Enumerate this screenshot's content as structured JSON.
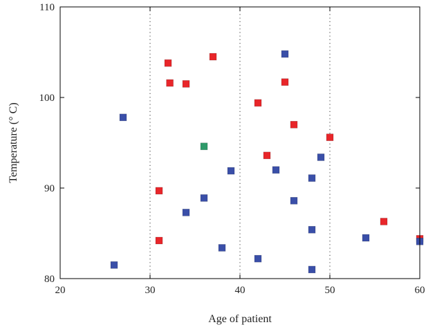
{
  "chart_data": {
    "type": "scatter",
    "title": "",
    "xlabel": "Age of patient",
    "ylabel": "Temperature (° C)",
    "xlim": [
      20,
      60
    ],
    "ylim": [
      80,
      110
    ],
    "xticks": [
      "20",
      "30",
      "40",
      "50",
      "60"
    ],
    "yticks": [
      "80",
      "90",
      "100",
      "110"
    ],
    "vertical_dotted_lines": [
      30,
      40,
      50
    ],
    "grid": false,
    "series": [
      {
        "color": "#e8262a",
        "points": [
          {
            "x": 32,
            "y": 103.8
          },
          {
            "x": 32.2,
            "y": 101.6
          },
          {
            "x": 34,
            "y": 101.5
          },
          {
            "x": 37,
            "y": 104.5
          },
          {
            "x": 31,
            "y": 89.7
          },
          {
            "x": 31,
            "y": 84.2
          },
          {
            "x": 42,
            "y": 99.4
          },
          {
            "x": 45,
            "y": 101.7
          },
          {
            "x": 46,
            "y": 97.0
          },
          {
            "x": 50,
            "y": 95.6
          },
          {
            "x": 43,
            "y": 93.6
          },
          {
            "x": 56,
            "y": 86.3
          },
          {
            "x": 60,
            "y": 84.4
          }
        ]
      },
      {
        "color": "#3a4fa8",
        "points": [
          {
            "x": 26,
            "y": 81.5
          },
          {
            "x": 27,
            "y": 97.8
          },
          {
            "x": 34,
            "y": 87.3
          },
          {
            "x": 36,
            "y": 88.9
          },
          {
            "x": 38,
            "y": 83.4
          },
          {
            "x": 39,
            "y": 91.9
          },
          {
            "x": 42,
            "y": 82.2
          },
          {
            "x": 44,
            "y": 92.0
          },
          {
            "x": 45,
            "y": 104.8
          },
          {
            "x": 46,
            "y": 88.6
          },
          {
            "x": 48,
            "y": 91.1
          },
          {
            "x": 48,
            "y": 85.4
          },
          {
            "x": 48,
            "y": 81.0
          },
          {
            "x": 49,
            "y": 93.4
          },
          {
            "x": 54,
            "y": 84.5
          },
          {
            "x": 60,
            "y": 84.1
          }
        ]
      },
      {
        "color": "#2e9a6a",
        "points": [
          {
            "x": 36,
            "y": 94.6
          }
        ]
      }
    ]
  }
}
